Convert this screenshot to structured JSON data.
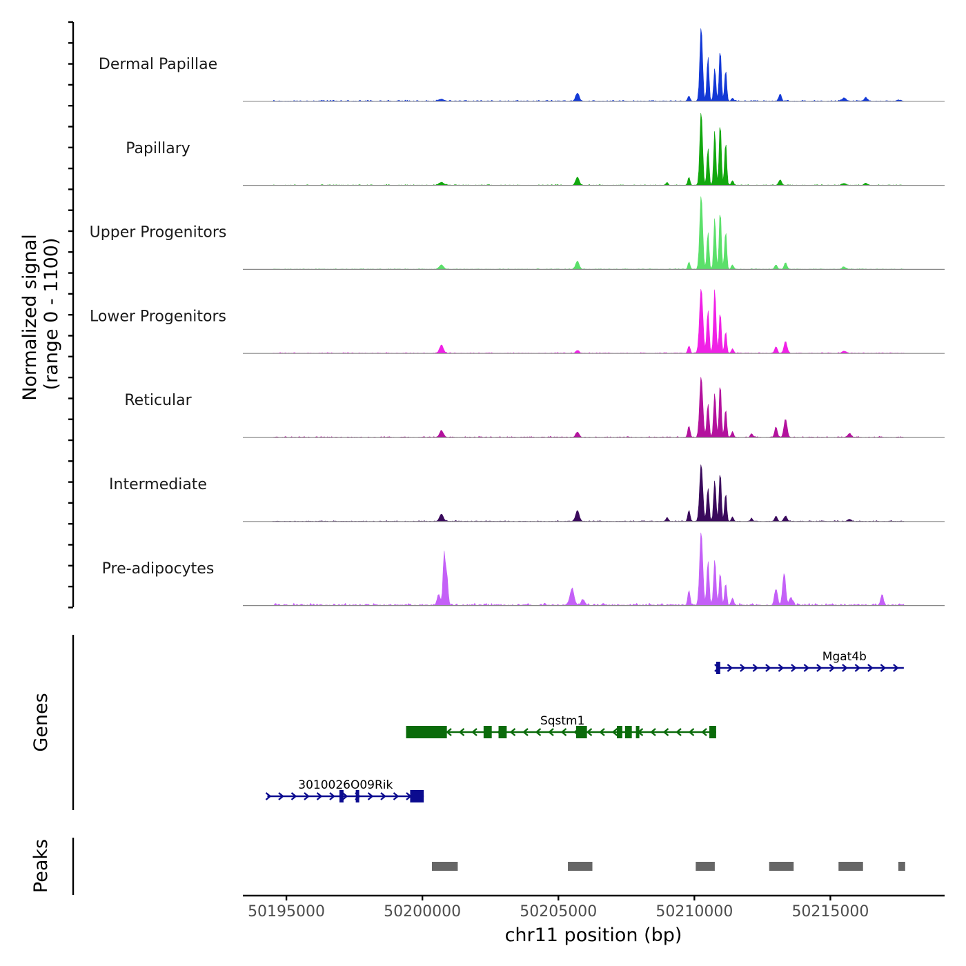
{
  "chart_data": {
    "type": "area",
    "subtype": "genome-browser-coverage",
    "chromosome": "chr11",
    "xlabel": "chr11 position (bp)",
    "ylabel_line1": "Normalized signal",
    "ylabel_line2": "(range 0 - 1100)",
    "y_range": [
      0,
      1100
    ],
    "xlim": [
      50193400,
      50219200
    ],
    "x_ticks": [
      50195000,
      50200000,
      50205000,
      50210000,
      50215000
    ],
    "x_tick_labels": [
      "50195000",
      "50200000",
      "50205000",
      "50210000",
      "50215000"
    ],
    "coverage_start": 50194500,
    "coverage_end": 50217700,
    "series": [
      {
        "name": "Dermal Papillae",
        "color": "#1339d6",
        "peaks": [
          [
            50200700,
            30,
            120
          ],
          [
            50205700,
            110,
            90
          ],
          [
            50209800,
            70,
            60
          ],
          [
            50210250,
            1000,
            70
          ],
          [
            50210500,
            600,
            55
          ],
          [
            50210750,
            450,
            55
          ],
          [
            50210950,
            700,
            55
          ],
          [
            50211150,
            420,
            55
          ],
          [
            50211400,
            40,
            60
          ],
          [
            50213150,
            90,
            70
          ],
          [
            50215500,
            40,
            100
          ],
          [
            50216300,
            50,
            80
          ],
          [
            50217500,
            20,
            60
          ]
        ],
        "noise": 18
      },
      {
        "name": "Papillary",
        "color": "#13a80f",
        "peaks": [
          [
            50200700,
            40,
            120
          ],
          [
            50205700,
            110,
            90
          ],
          [
            50209000,
            40,
            50
          ],
          [
            50209800,
            110,
            55
          ],
          [
            50210250,
            1000,
            70
          ],
          [
            50210500,
            500,
            55
          ],
          [
            50210750,
            750,
            55
          ],
          [
            50210950,
            850,
            55
          ],
          [
            50211150,
            580,
            55
          ],
          [
            50211400,
            60,
            60
          ],
          [
            50213150,
            70,
            80
          ],
          [
            50215500,
            25,
            100
          ],
          [
            50216300,
            30,
            80
          ]
        ],
        "noise": 12
      },
      {
        "name": "Upper Progenitors",
        "color": "#5be06a",
        "peaks": [
          [
            50200700,
            60,
            110
          ],
          [
            50205700,
            110,
            90
          ],
          [
            50209800,
            100,
            55
          ],
          [
            50210250,
            1000,
            75
          ],
          [
            50210500,
            500,
            55
          ],
          [
            50210750,
            700,
            55
          ],
          [
            50210950,
            800,
            55
          ],
          [
            50211150,
            520,
            55
          ],
          [
            50211400,
            60,
            60
          ],
          [
            50213000,
            60,
            70
          ],
          [
            50213350,
            90,
            70
          ],
          [
            50215500,
            30,
            100
          ]
        ],
        "noise": 12
      },
      {
        "name": "Lower Progenitors",
        "color": "#f021e6",
        "peaks": [
          [
            50200700,
            110,
            100
          ],
          [
            50205700,
            40,
            90
          ],
          [
            50209800,
            100,
            60
          ],
          [
            50210250,
            880,
            85
          ],
          [
            50210500,
            580,
            60
          ],
          [
            50210750,
            880,
            60
          ],
          [
            50210950,
            560,
            55
          ],
          [
            50211150,
            300,
            55
          ],
          [
            50211400,
            60,
            60
          ],
          [
            50213000,
            90,
            70
          ],
          [
            50213350,
            160,
            80
          ],
          [
            50215500,
            30,
            100
          ]
        ],
        "noise": 14
      },
      {
        "name": "Reticular",
        "color": "#b3129d",
        "peaks": [
          [
            50200700,
            90,
            100
          ],
          [
            50205700,
            70,
            90
          ],
          [
            50209800,
            150,
            60
          ],
          [
            50210250,
            820,
            80
          ],
          [
            50210500,
            450,
            60
          ],
          [
            50210750,
            600,
            60
          ],
          [
            50210950,
            730,
            55
          ],
          [
            50211150,
            380,
            55
          ],
          [
            50211400,
            70,
            60
          ],
          [
            50212100,
            50,
            60
          ],
          [
            50213000,
            140,
            70
          ],
          [
            50213350,
            250,
            80
          ],
          [
            50215700,
            50,
            90
          ]
        ],
        "noise": 16
      },
      {
        "name": "Intermediate",
        "color": "#3a0a5c",
        "peaks": [
          [
            50200700,
            100,
            100
          ],
          [
            50205700,
            150,
            90
          ],
          [
            50209000,
            50,
            60
          ],
          [
            50209800,
            150,
            60
          ],
          [
            50210250,
            780,
            80
          ],
          [
            50210500,
            450,
            60
          ],
          [
            50210750,
            560,
            60
          ],
          [
            50210950,
            680,
            55
          ],
          [
            50211150,
            380,
            55
          ],
          [
            50211400,
            60,
            60
          ],
          [
            50212100,
            40,
            60
          ],
          [
            50213000,
            70,
            70
          ],
          [
            50213350,
            70,
            80
          ],
          [
            50215700,
            30,
            90
          ]
        ],
        "noise": 14
      },
      {
        "name": "Pre-adipocytes",
        "color": "#c460f7",
        "peaks": [
          [
            50200600,
            150,
            80
          ],
          [
            50200800,
            700,
            60
          ],
          [
            50200900,
            400,
            60
          ],
          [
            50205500,
            220,
            110
          ],
          [
            50205900,
            80,
            90
          ],
          [
            50209800,
            200,
            60
          ],
          [
            50210250,
            980,
            80
          ],
          [
            50210500,
            600,
            60
          ],
          [
            50210750,
            620,
            60
          ],
          [
            50210950,
            450,
            55
          ],
          [
            50211150,
            300,
            55
          ],
          [
            50211400,
            100,
            60
          ],
          [
            50213000,
            220,
            80
          ],
          [
            50213300,
            420,
            80
          ],
          [
            50213550,
            110,
            80
          ],
          [
            50216900,
            150,
            70
          ]
        ],
        "noise": 35
      }
    ],
    "genes": [
      {
        "name": "Mgat4b",
        "strand": "+",
        "start": 50210800,
        "end": 50217700,
        "color": "#0b0b8f",
        "exons": [
          [
            50210800,
            50210950
          ]
        ]
      },
      {
        "name": "Sqstm1",
        "strand": "-",
        "start": 50199400,
        "end": 50210800,
        "color": "#0a6b0a",
        "exons": [
          [
            50199400,
            50200900
          ],
          [
            50202250,
            50202550
          ],
          [
            50202800,
            50203100
          ],
          [
            50205650,
            50206050
          ],
          [
            50207150,
            50207350
          ],
          [
            50207450,
            50207700
          ],
          [
            50207850,
            50207950
          ],
          [
            50210550,
            50210800
          ]
        ]
      },
      {
        "name": "3010026O09Rik",
        "strand": "+",
        "start": 50194300,
        "end": 50200050,
        "color": "#0b0b8f",
        "exons": [
          [
            50196950,
            50197100
          ],
          [
            50197550,
            50197650
          ],
          [
            50199550,
            50200050
          ]
        ]
      }
    ],
    "peaks": [
      [
        50200350,
        50201300
      ],
      [
        50205350,
        50206250
      ],
      [
        50210050,
        50210750
      ],
      [
        50212750,
        50213650
      ],
      [
        50215300,
        50216200
      ],
      [
        50217500,
        50217750
      ]
    ],
    "panel_titles": {
      "genes": "Genes",
      "peaks": "Peaks"
    },
    "colors": {
      "baseline": "#888888",
      "peak_box": "#666666",
      "axis": "#000000"
    }
  }
}
